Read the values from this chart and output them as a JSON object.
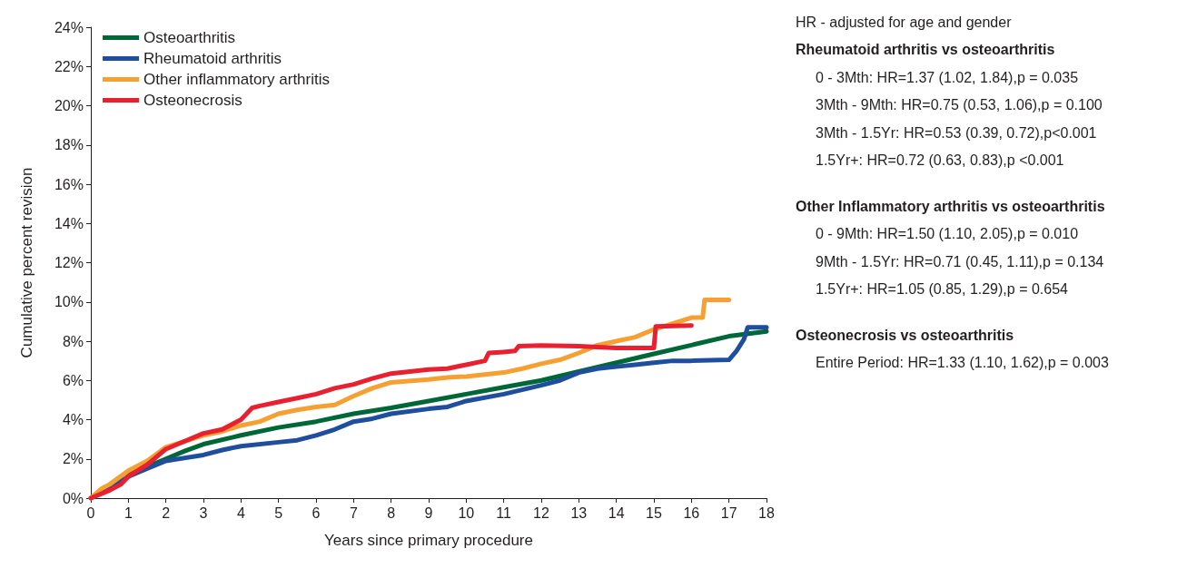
{
  "chart_data": {
    "type": "line",
    "xlabel": "Years since primary procedure",
    "ylabel": "Cumulative percent revision",
    "xlim": [
      0,
      18
    ],
    "xticks": [
      0,
      1,
      2,
      3,
      4,
      5,
      6,
      7,
      8,
      9,
      10,
      11,
      12,
      13,
      14,
      15,
      16,
      17,
      18
    ],
    "ylim": [
      0,
      24
    ],
    "yticks": [
      {
        "value": 0,
        "label": "0%"
      },
      {
        "value": 2,
        "label": "2%"
      },
      {
        "value": 4,
        "label": "4%"
      },
      {
        "value": 6,
        "label": "6%"
      },
      {
        "value": 8,
        "label": "8%"
      },
      {
        "value": 10,
        "label": "10%"
      },
      {
        "value": 12,
        "label": "12%"
      },
      {
        "value": 14,
        "label": "14%"
      },
      {
        "value": 16,
        "label": "16%"
      },
      {
        "value": 18,
        "label": "18%"
      },
      {
        "value": 20,
        "label": "20%"
      },
      {
        "value": 22,
        "label": "22%"
      },
      {
        "value": 24,
        "label": "24%"
      }
    ],
    "grid": false,
    "legend": "top left",
    "marker": "none",
    "line_style": "solid",
    "series": [
      {
        "name": "Osteoarthritis",
        "color": "#006838",
        "x": [
          1,
          1.5,
          2,
          2.5,
          3,
          4,
          5,
          6,
          7,
          8,
          9,
          10,
          11,
          12,
          13,
          14,
          15,
          16,
          17,
          18
        ],
        "values": [
          1.2,
          1.6,
          2.0,
          2.4,
          2.75,
          3.2,
          3.6,
          3.9,
          4.3,
          4.6,
          4.95,
          5.3,
          5.65,
          6.0,
          6.45,
          6.9,
          7.35,
          7.8,
          8.25,
          8.5
        ]
      },
      {
        "name": "Rheumatoid arthritis",
        "color": "#1f4e9e",
        "x": [
          0,
          0.5,
          1,
          1.5,
          2,
          3,
          3.5,
          4,
          5,
          5.5,
          6,
          6.5,
          7,
          7.5,
          8,
          9,
          9.5,
          10,
          11,
          12,
          12.5,
          13,
          13.5,
          14,
          14.5,
          15,
          15.5,
          16,
          17,
          17.2,
          17.4,
          17.5,
          18
        ],
        "values": [
          0,
          0.5,
          1.1,
          1.5,
          1.9,
          2.2,
          2.45,
          2.65,
          2.85,
          2.95,
          3.2,
          3.5,
          3.9,
          4.05,
          4.3,
          4.55,
          4.65,
          4.95,
          5.3,
          5.75,
          6.0,
          6.4,
          6.6,
          6.7,
          6.8,
          6.9,
          7.0,
          7.0,
          7.05,
          7.5,
          8.1,
          8.7,
          8.7
        ]
      },
      {
        "name": "Other inflammatory arthritis",
        "color": "#f5a031",
        "x": [
          0,
          0.3,
          0.5,
          1,
          1.5,
          2,
          2.5,
          3,
          3.5,
          4,
          4.5,
          5,
          5.5,
          6,
          6.5,
          7,
          7.5,
          8,
          9,
          9.5,
          10,
          10.5,
          11,
          11.5,
          12,
          12.5,
          13,
          13.5,
          14,
          14.5,
          15,
          15.5,
          16,
          16.3,
          16.35,
          17
        ],
        "values": [
          0,
          0.5,
          0.7,
          1.4,
          1.9,
          2.6,
          2.9,
          3.2,
          3.4,
          3.7,
          3.9,
          4.3,
          4.5,
          4.65,
          4.75,
          5.2,
          5.6,
          5.9,
          6.05,
          6.15,
          6.2,
          6.3,
          6.4,
          6.6,
          6.85,
          7.05,
          7.4,
          7.8,
          8.0,
          8.2,
          8.6,
          8.9,
          9.2,
          9.2,
          10.1,
          10.1
        ]
      },
      {
        "name": "Osteonecrosis",
        "color": "#e8202f",
        "x": [
          0,
          0.5,
          0.8,
          1,
          1.5,
          2,
          2.5,
          3,
          3.5,
          4,
          4.3,
          4.5,
          5,
          5.5,
          6,
          6.5,
          7,
          7.5,
          8,
          8.5,
          9,
          9.5,
          10,
          10.5,
          10.6,
          11,
          11.3,
          11.4,
          12,
          13,
          13.5,
          14,
          15,
          15.05,
          16
        ],
        "values": [
          0,
          0.4,
          0.7,
          1.1,
          1.7,
          2.5,
          2.9,
          3.3,
          3.5,
          4.0,
          4.6,
          4.7,
          4.9,
          5.1,
          5.3,
          5.6,
          5.8,
          6.1,
          6.35,
          6.45,
          6.55,
          6.6,
          6.8,
          7.0,
          7.4,
          7.45,
          7.5,
          7.75,
          7.78,
          7.75,
          7.7,
          7.65,
          7.65,
          8.75,
          8.8
        ]
      }
    ],
    "annotations": [
      "HR - adjusted for age and gender",
      "Rheumatoid arthritis vs osteoarthritis",
      "0 - 3Mth: HR=1.37 (1.02, 1.84),p = 0.035",
      "3Mth - 9Mth: HR=0.75 (0.53, 1.06),p = 0.100",
      "3Mth - 1.5Yr: HR=0.53 (0.39, 0.72),p<0.001",
      "1.5Yr+: HR=0.72 (0.63, 0.83),p <0.001",
      "Other Inflammatory arthritis vs osteoarthritis",
      "0 - 9Mth: HR=1.50 (1.10, 2.05),p = 0.010",
      "9Mth - 1.5Yr: HR=0.71 (0.45, 1.11),p = 0.134",
      "1.5Yr+: HR=1.05 (0.85, 1.29),p = 0.654",
      "Osteonecrosis vs osteoarthritis",
      "Entire Period: HR=1.33 (1.10, 1.62),p = 0.003"
    ]
  }
}
